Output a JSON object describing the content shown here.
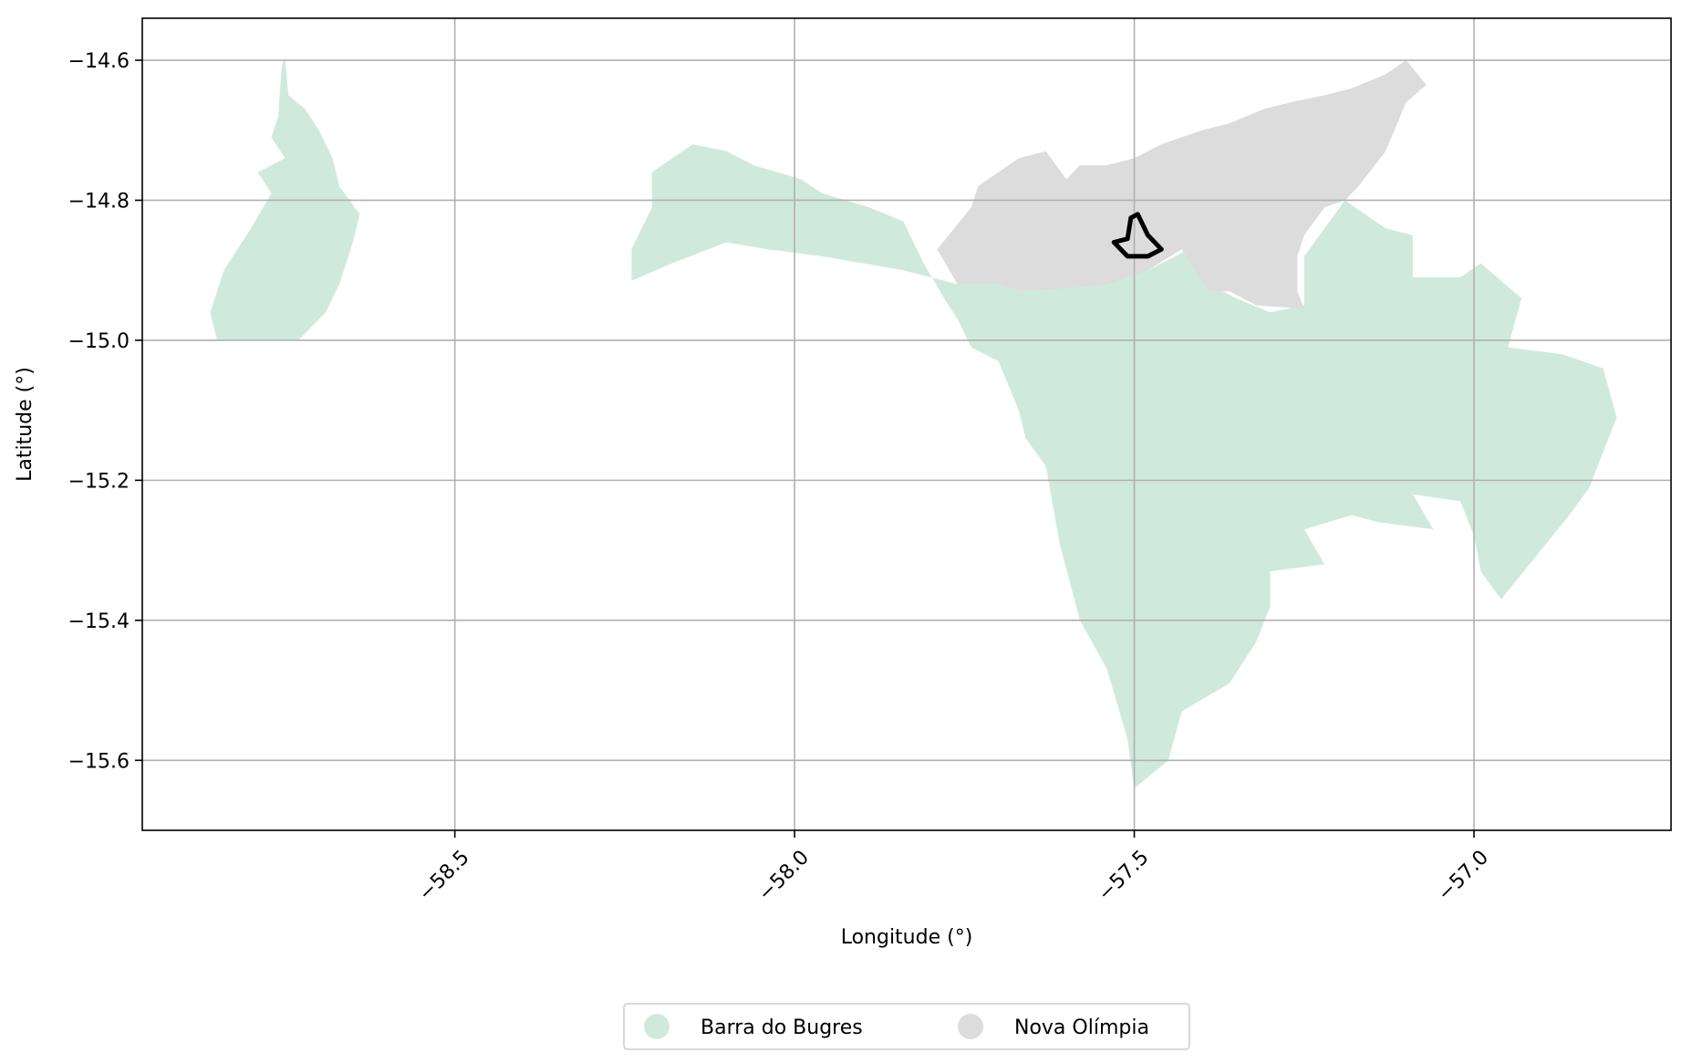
{
  "chart_data": {
    "type": "map",
    "xlabel": "Longitude (°)",
    "ylabel": "Latitude (°)",
    "xlim": [
      -58.96,
      -56.71
    ],
    "ylim": [
      -15.7,
      -14.54
    ],
    "grid": true,
    "legend_placement": "bottom-center",
    "x_ticks": [
      -58.5,
      -58.0,
      -57.5,
      -57.0
    ],
    "x_tick_labels": [
      "−58.5",
      "−58.0",
      "−57.5",
      "−57.0"
    ],
    "y_ticks": [
      -14.6,
      -14.8,
      -15.0,
      -15.2,
      -15.4,
      -15.6
    ],
    "y_tick_labels": [
      "−14.6",
      "−14.8",
      "−15.0",
      "−15.2",
      "−15.4",
      "−15.6"
    ],
    "series": [
      {
        "name": "Barra do Bugres",
        "color": "#cfeadd",
        "polygons": [
          [
            [
              -58.85,
              -15.0
            ],
            [
              -58.86,
              -14.96
            ],
            [
              -58.84,
              -14.9
            ],
            [
              -58.8,
              -14.84
            ],
            [
              -58.77,
              -14.79
            ],
            [
              -58.79,
              -14.76
            ],
            [
              -58.75,
              -14.74
            ],
            [
              -58.77,
              -14.71
            ],
            [
              -58.76,
              -14.68
            ],
            [
              -58.755,
              -14.61
            ],
            [
              -58.75,
              -14.595
            ],
            [
              -58.745,
              -14.65
            ],
            [
              -58.72,
              -14.67
            ],
            [
              -58.7,
              -14.7
            ],
            [
              -58.68,
              -14.74
            ],
            [
              -58.67,
              -14.78
            ],
            [
              -58.64,
              -14.82
            ],
            [
              -58.65,
              -14.86
            ],
            [
              -58.67,
              -14.92
            ],
            [
              -58.69,
              -14.96
            ],
            [
              -58.73,
              -15.0
            ]
          ],
          [
            [
              -58.24,
              -14.915
            ],
            [
              -58.24,
              -14.87
            ],
            [
              -58.21,
              -14.81
            ],
            [
              -58.21,
              -14.76
            ],
            [
              -58.15,
              -14.72
            ],
            [
              -58.1,
              -14.73
            ],
            [
              -58.06,
              -14.75
            ],
            [
              -57.99,
              -14.77
            ],
            [
              -57.96,
              -14.79
            ],
            [
              -57.89,
              -14.81
            ],
            [
              -57.84,
              -14.83
            ],
            [
              -57.81,
              -14.89
            ],
            [
              -57.78,
              -14.94
            ],
            [
              -57.76,
              -14.97
            ],
            [
              -57.74,
              -15.01
            ],
            [
              -57.7,
              -15.03
            ],
            [
              -57.67,
              -15.1
            ],
            [
              -57.66,
              -15.14
            ],
            [
              -57.63,
              -15.18
            ],
            [
              -57.61,
              -15.29
            ],
            [
              -57.58,
              -15.4
            ],
            [
              -57.54,
              -15.47
            ],
            [
              -57.51,
              -15.57
            ],
            [
              -57.5,
              -15.64
            ],
            [
              -57.45,
              -15.6
            ],
            [
              -57.43,
              -15.53
            ],
            [
              -57.36,
              -15.49
            ],
            [
              -57.32,
              -15.43
            ],
            [
              -57.3,
              -15.38
            ],
            [
              -57.3,
              -15.33
            ],
            [
              -57.22,
              -15.32
            ],
            [
              -57.25,
              -15.27
            ],
            [
              -57.18,
              -15.25
            ],
            [
              -57.14,
              -15.26
            ],
            [
              -57.06,
              -15.27
            ],
            [
              -57.09,
              -15.22
            ],
            [
              -57.02,
              -15.23
            ],
            [
              -57.0,
              -15.28
            ],
            [
              -56.99,
              -15.33
            ],
            [
              -56.96,
              -15.37
            ],
            [
              -56.86,
              -15.25
            ],
            [
              -56.83,
              -15.21
            ],
            [
              -56.79,
              -15.11
            ],
            [
              -56.81,
              -15.04
            ],
            [
              -56.87,
              -15.02
            ],
            [
              -56.95,
              -15.01
            ],
            [
              -56.93,
              -14.94
            ],
            [
              -56.99,
              -14.89
            ],
            [
              -57.02,
              -14.91
            ],
            [
              -57.09,
              -14.91
            ],
            [
              -57.09,
              -14.85
            ],
            [
              -57.13,
              -14.84
            ],
            [
              -57.19,
              -14.8
            ],
            [
              -57.22,
              -14.84
            ],
            [
              -57.25,
              -14.88
            ],
            [
              -57.25,
              -14.95
            ],
            [
              -57.3,
              -14.96
            ],
            [
              -57.35,
              -14.94
            ],
            [
              -57.39,
              -14.92
            ],
            [
              -57.42,
              -14.87
            ],
            [
              -57.48,
              -14.9
            ],
            [
              -57.56,
              -14.92
            ],
            [
              -57.62,
              -14.925
            ],
            [
              -57.69,
              -14.915
            ],
            [
              -57.73,
              -14.9
            ],
            [
              -57.76,
              -14.92
            ],
            [
              -57.8,
              -14.91
            ],
            [
              -57.84,
              -14.9
            ],
            [
              -57.9,
              -14.89
            ],
            [
              -57.96,
              -14.88
            ],
            [
              -58.04,
              -14.87
            ],
            [
              -58.1,
              -14.86
            ],
            [
              -58.18,
              -14.89
            ]
          ]
        ]
      },
      {
        "name": "Nova Olímpia",
        "color": "#dcdcdc",
        "polygons": [
          [
            [
              -57.76,
              -14.92
            ],
            [
              -57.79,
              -14.87
            ],
            [
              -57.74,
              -14.81
            ],
            [
              -57.73,
              -14.78
            ],
            [
              -57.7,
              -14.76
            ],
            [
              -57.67,
              -14.74
            ],
            [
              -57.63,
              -14.73
            ],
            [
              -57.6,
              -14.77
            ],
            [
              -57.58,
              -14.75
            ],
            [
              -57.54,
              -14.75
            ],
            [
              -57.5,
              -14.74
            ],
            [
              -57.46,
              -14.72
            ],
            [
              -57.4,
              -14.7
            ],
            [
              -57.36,
              -14.69
            ],
            [
              -57.31,
              -14.67
            ],
            [
              -57.27,
              -14.66
            ],
            [
              -57.22,
              -14.65
            ],
            [
              -57.18,
              -14.64
            ],
            [
              -57.13,
              -14.62
            ],
            [
              -57.1,
              -14.6
            ],
            [
              -57.07,
              -14.635
            ],
            [
              -57.1,
              -14.66
            ],
            [
              -57.13,
              -14.73
            ],
            [
              -57.17,
              -14.78
            ],
            [
              -57.19,
              -14.8
            ],
            [
              -57.22,
              -14.81
            ],
            [
              -57.25,
              -14.85
            ],
            [
              -57.26,
              -14.88
            ],
            [
              -57.26,
              -14.93
            ],
            [
              -57.25,
              -14.955
            ],
            [
              -57.32,
              -14.95
            ],
            [
              -57.36,
              -14.93
            ],
            [
              -57.39,
              -14.93
            ],
            [
              -57.43,
              -14.87
            ],
            [
              -57.48,
              -14.9
            ],
            [
              -57.54,
              -14.92
            ],
            [
              -57.59,
              -14.925
            ],
            [
              -57.66,
              -14.93
            ],
            [
              -57.7,
              -14.92
            ]
          ]
        ]
      }
    ],
    "overlay_outline": [
      [
        -57.505,
        -14.825
      ],
      [
        -57.51,
        -14.855
      ],
      [
        -57.53,
        -14.86
      ],
      [
        -57.51,
        -14.88
      ],
      [
        -57.48,
        -14.88
      ],
      [
        -57.46,
        -14.87
      ],
      [
        -57.48,
        -14.85
      ],
      [
        -57.495,
        -14.82
      ]
    ]
  }
}
